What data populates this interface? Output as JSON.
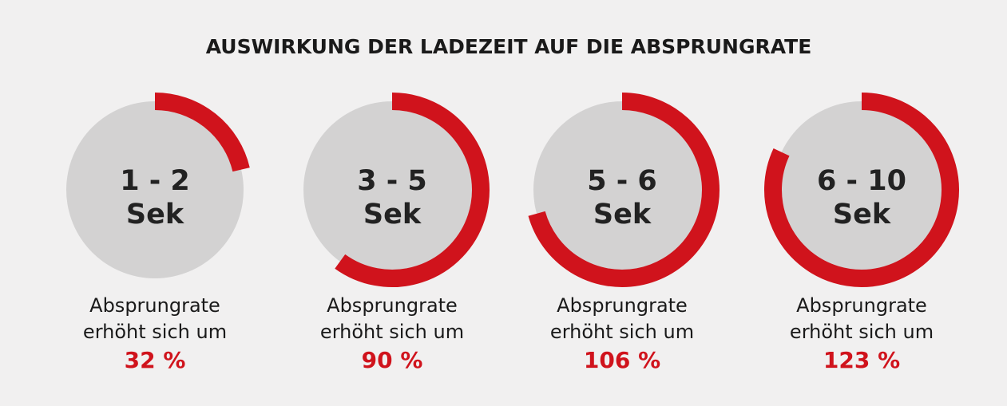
{
  "chart_data": {
    "type": "donut",
    "title": "AUSWIRKUNG DER LADEZEIT AUF DIE ABSPRUNGRATE",
    "max_value": 150,
    "colors": {
      "arc": "#d0131c",
      "disc": "#d3d2d2",
      "background": "#f1f0f0",
      "percent_text": "#d0131c"
    },
    "items": [
      {
        "range": "1 - 2",
        "unit": "Sek",
        "caption_line1": "Absprungrate",
        "caption_line2": "erhöht sich um",
        "value": 32,
        "percent_label": "32 %"
      },
      {
        "range": "3 - 5",
        "unit": "Sek",
        "caption_line1": "Absprungrate",
        "caption_line2": "erhöht sich um",
        "value": 90,
        "percent_label": "90 %"
      },
      {
        "range": "5 - 6",
        "unit": "Sek",
        "caption_line1": "Absprungrate",
        "caption_line2": "erhöht sich um",
        "value": 106,
        "percent_label": "106 %"
      },
      {
        "range": "6 - 10",
        "unit": "Sek",
        "caption_line1": "Absprungrate",
        "caption_line2": "erhöht sich um",
        "value": 123,
        "percent_label": "123 %"
      }
    ]
  }
}
